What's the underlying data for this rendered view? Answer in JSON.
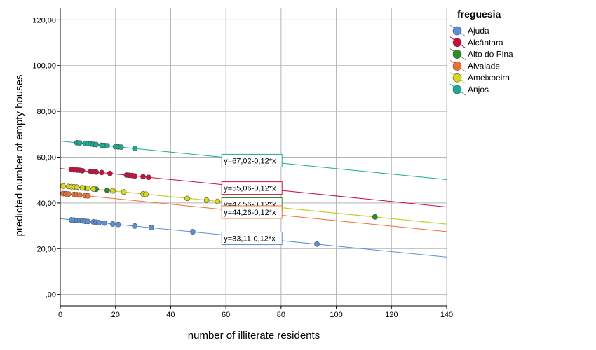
{
  "chart_data": {
    "type": "scatter",
    "xlabel": "number of illiterate residents",
    "ylabel": "predicted number of empty houses",
    "xlim": [
      0,
      140
    ],
    "ylim": [
      -5,
      125
    ],
    "x_ticks": [
      0,
      20,
      40,
      60,
      80,
      100,
      120,
      140
    ],
    "x_tick_labels": [
      "0",
      "20",
      "40",
      "60",
      "80",
      "100",
      "120",
      "140"
    ],
    "y_ticks": [
      0,
      20,
      40,
      60,
      80,
      100,
      120
    ],
    "y_tick_labels": [
      ",00",
      "20,00",
      "40,00",
      "60,00",
      "80,00",
      "100,00",
      "120,00"
    ],
    "grid": true,
    "legend_title": "freguesia",
    "legend_position": "top-right",
    "series": [
      {
        "name": "Ajuda",
        "color": "#5b8fd6",
        "intercept": 33.11,
        "slope": -0.12,
        "equation": "y=33,11-0,12*x",
        "label_x": 59,
        "label_y": 24.5,
        "points": [
          [
            4,
            32.6
          ],
          [
            5,
            32.5
          ],
          [
            6,
            32.4
          ],
          [
            7,
            32.3
          ],
          [
            8,
            32.2
          ],
          [
            9,
            32.0
          ],
          [
            10,
            31.9
          ],
          [
            12,
            31.7
          ],
          [
            13,
            31.6
          ],
          [
            14,
            31.4
          ],
          [
            16,
            31.2
          ],
          [
            19,
            30.8
          ],
          [
            21,
            30.6
          ],
          [
            27,
            29.9
          ],
          [
            33,
            29.2
          ],
          [
            48,
            27.4
          ],
          [
            93,
            22.0
          ]
        ]
      },
      {
        "name": "Alcântara",
        "color": "#c8103e",
        "intercept": 55.06,
        "slope": -0.12,
        "equation": "y=55,06-0,12*x",
        "label_x": 59,
        "label_y": 46.5,
        "points": [
          [
            4,
            54.6
          ],
          [
            5,
            54.5
          ],
          [
            6,
            54.4
          ],
          [
            7,
            54.3
          ],
          [
            8,
            54.1
          ],
          [
            11,
            53.8
          ],
          [
            12,
            53.7
          ],
          [
            13,
            53.5
          ],
          [
            15,
            53.3
          ],
          [
            18,
            52.9
          ],
          [
            24,
            52.2
          ],
          [
            25,
            52.1
          ],
          [
            26,
            52.0
          ],
          [
            27,
            51.8
          ],
          [
            30,
            51.5
          ],
          [
            32,
            51.2
          ]
        ]
      },
      {
        "name": "Alto do Pina",
        "color": "#2f8a2a",
        "intercept": 47.56,
        "slope": -0.12,
        "equation": "y=47,56-0,12*x",
        "label_x": 59,
        "label_y": 39.5,
        "points": [
          [
            9,
            46.5
          ],
          [
            13,
            46.0
          ],
          [
            17,
            45.5
          ],
          [
            114,
            33.9
          ]
        ]
      },
      {
        "name": "Alvalade",
        "color": "#f07032",
        "intercept": 44.26,
        "slope": -0.12,
        "equation": "y=44,26-0,12*x",
        "label_x": 59,
        "label_y": 36.0,
        "points": [
          [
            1,
            44.1
          ],
          [
            2,
            44.0
          ],
          [
            3,
            43.9
          ],
          [
            5,
            43.7
          ],
          [
            6,
            43.6
          ],
          [
            7,
            43.5
          ],
          [
            9,
            43.2
          ],
          [
            10,
            43.1
          ]
        ]
      },
      {
        "name": "Ameixoeira",
        "color": "#d8d820",
        "intercept": 47.56,
        "slope": -0.12,
        "equation": "",
        "label_x": 59,
        "label_y": 39.5,
        "points": [
          [
            1,
            47.4
          ],
          [
            3,
            47.2
          ],
          [
            4,
            47.1
          ],
          [
            5,
            47.0
          ],
          [
            6,
            46.9
          ],
          [
            8,
            46.6
          ],
          [
            10,
            46.4
          ],
          [
            12,
            46.1
          ],
          [
            19,
            45.3
          ],
          [
            23,
            44.8
          ],
          [
            30,
            44.0
          ],
          [
            31,
            43.8
          ],
          [
            46,
            42.0
          ],
          [
            53,
            41.2
          ],
          [
            57,
            40.7
          ]
        ]
      },
      {
        "name": "Anjos",
        "color": "#1aaa96",
        "intercept": 67.02,
        "slope": -0.12,
        "equation": "y=67,02-0,12*x",
        "label_x": 59,
        "label_y": 58.5,
        "points": [
          [
            6,
            66.3
          ],
          [
            7,
            66.2
          ],
          [
            9,
            66.0
          ],
          [
            10,
            65.9
          ],
          [
            11,
            65.8
          ],
          [
            12,
            65.6
          ],
          [
            13,
            65.5
          ],
          [
            15,
            65.2
          ],
          [
            16,
            65.1
          ],
          [
            17,
            65.0
          ],
          [
            20,
            64.6
          ],
          [
            21,
            64.5
          ],
          [
            22,
            64.4
          ],
          [
            27,
            63.8
          ]
        ]
      }
    ]
  }
}
